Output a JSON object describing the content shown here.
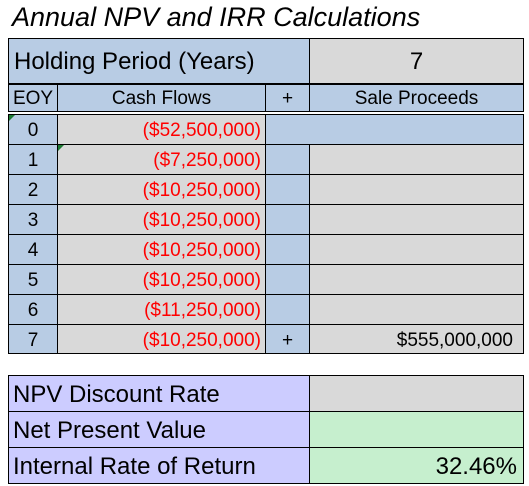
{
  "title": "Annual NPV and IRR Calculations",
  "holding": {
    "label": "Holding Period (Years)",
    "value": "7"
  },
  "headers": {
    "eoy": "EOY",
    "cash_flows": "Cash Flows",
    "plus": "+",
    "sale": "Sale Proceeds"
  },
  "rows": [
    {
      "eoy": "0",
      "cash_flow": "($52,500,000)",
      "plus": "",
      "sale": ""
    },
    {
      "eoy": "1",
      "cash_flow": "($7,250,000)",
      "plus": "",
      "sale": ""
    },
    {
      "eoy": "2",
      "cash_flow": "($10,250,000)",
      "plus": "",
      "sale": ""
    },
    {
      "eoy": "3",
      "cash_flow": "($10,250,000)",
      "plus": "",
      "sale": ""
    },
    {
      "eoy": "4",
      "cash_flow": "($10,250,000)",
      "plus": "",
      "sale": ""
    },
    {
      "eoy": "5",
      "cash_flow": "($10,250,000)",
      "plus": "",
      "sale": ""
    },
    {
      "eoy": "6",
      "cash_flow": "($11,250,000)",
      "plus": "",
      "sale": ""
    },
    {
      "eoy": "7",
      "cash_flow": "($10,250,000)",
      "plus": "+",
      "sale": "$555,000,000"
    }
  ],
  "summary": [
    {
      "label": "NPV Discount Rate",
      "value": ""
    },
    {
      "label": "Net Present Value",
      "value": ""
    },
    {
      "label": "Internal Rate of Return",
      "value": "32.46%"
    }
  ],
  "colors": {
    "header_blue": "#b8cce4",
    "input_grey": "#d9d9d9",
    "label_lavender": "#ccccff",
    "output_green": "#c6efce",
    "negative_red": "#ff0000"
  }
}
